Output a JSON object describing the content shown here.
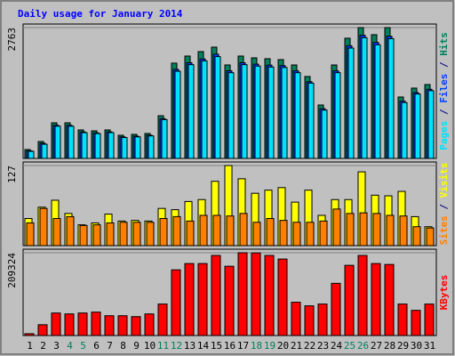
{
  "chart_data": [
    {
      "type": "bar",
      "title": "Daily usage for January 2014",
      "legend_separator": " / ",
      "ylim": [
        0,
        2763
      ],
      "yticks": [
        2763
      ],
      "series": [
        {
          "name": "Pages",
          "color": "#00e0ff",
          "values": [
            150,
            300,
            680,
            680,
            545,
            525,
            545,
            440,
            455,
            475,
            820,
            1840,
            1980,
            2060,
            2150,
            1810,
            1980,
            1950,
            1930,
            1920,
            1810,
            1590,
            1020,
            1810,
            2330,
            2550,
            2400,
            2530,
            1180,
            1360,
            1430
          ]
        },
        {
          "name": "Files",
          "color": "#0040ff",
          "values": [
            160,
            320,
            700,
            700,
            560,
            540,
            560,
            455,
            470,
            490,
            840,
            1880,
            2020,
            2100,
            2200,
            1850,
            2020,
            1990,
            1970,
            1960,
            1850,
            1620,
            1050,
            1850,
            2380,
            2600,
            2450,
            2580,
            1210,
            1390,
            1460
          ]
        },
        {
          "name": "Hits",
          "color": "#00805c",
          "values": [
            188,
            357,
            752,
            752,
            602,
            583,
            602,
            489,
            508,
            527,
            902,
            2012,
            2162,
            2256,
            2350,
            1974,
            2162,
            2124,
            2106,
            2087,
            1974,
            1730,
            1128,
            1974,
            2538,
            2763,
            2613,
            2763,
            1297,
            1485,
            1560
          ]
        }
      ]
    },
    {
      "type": "bar",
      "legend_separator": " / ",
      "ylim": [
        0,
        127
      ],
      "yticks": [
        127
      ],
      "series": [
        {
          "name": "Sites",
          "color": "#ff8000",
          "values": [
            36,
            59,
            43,
            46,
            32,
            33,
            36,
            37,
            37,
            37,
            43,
            46,
            39,
            48,
            48,
            47,
            51,
            37,
            43,
            40,
            37,
            37,
            39,
            58,
            51,
            52,
            51,
            48,
            47,
            30,
            28
          ]
        },
        {
          "name": "Visits",
          "color": "#ffff00",
          "values": [
            43,
            61,
            72,
            51,
            33,
            36,
            50,
            39,
            40,
            39,
            59,
            57,
            70,
            73,
            102,
            127,
            106,
            83,
            88,
            92,
            69,
            88,
            48,
            73,
            73,
            117,
            80,
            79,
            86,
            46,
            30
          ]
        }
      ]
    },
    {
      "type": "bar",
      "ylim": [
        0,
        209324
      ],
      "yticks": [
        209324
      ],
      "categories": [
        "1",
        "2",
        "3",
        "4",
        "5",
        "6",
        "7",
        "8",
        "9",
        "10",
        "11",
        "12",
        "13",
        "14",
        "15",
        "16",
        "17",
        "18",
        "19",
        "20",
        "21",
        "22",
        "23",
        "24",
        "25",
        "26",
        "27",
        "28",
        "29",
        "30",
        "31"
      ],
      "category_colors": [
        "#000000",
        "#000000",
        "#000000",
        "#00805c",
        "#00805c",
        "#000000",
        "#000000",
        "#000000",
        "#000000",
        "#000000",
        "#00805c",
        "#00805c",
        "#000000",
        "#000000",
        "#000000",
        "#000000",
        "#000000",
        "#00805c",
        "#00805c",
        "#000000",
        "#000000",
        "#000000",
        "#000000",
        "#000000",
        "#00805c",
        "#00805c",
        "#000000",
        "#000000",
        "#000000",
        "#000000",
        "#000000"
      ],
      "series": [
        {
          "name": "KBytes",
          "color": "#ff0000",
          "values": [
            4600,
            27300,
            56900,
            54600,
            56900,
            59200,
            50100,
            50100,
            47800,
            54600,
            79600,
            166100,
            182000,
            182000,
            202500,
            175200,
            209324,
            208900,
            202500,
            193400,
            84200,
            75100,
            79600,
            132000,
            177500,
            202500,
            182000,
            179700,
            79600,
            63700,
            79600
          ]
        }
      ]
    }
  ]
}
